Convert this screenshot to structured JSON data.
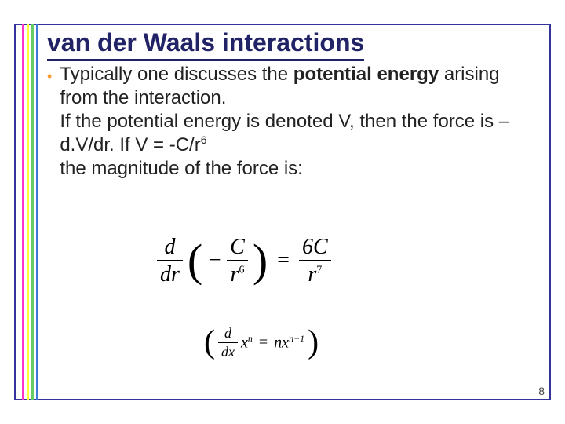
{
  "title": "van der Waals interactions",
  "bullet_glyph": "•",
  "body": {
    "line1a": "Typically one discusses the ",
    "line1b": "potential energy",
    "line1c": " arising from the interaction.",
    "line2": "If the potential energy is denoted V, then the force is –d.V/dr. If V = -C/r",
    "line2_sup": "6",
    "line3": "the magnitude of the force is:"
  },
  "eq_main": {
    "d": "d",
    "dr": "dr",
    "minus": "−",
    "C": "C",
    "r": "r",
    "six": "6",
    "eq": "=",
    "sixC": "6C",
    "seven": "7"
  },
  "eq_small": {
    "d": "d",
    "dx": "dx",
    "x": "x",
    "n": "n",
    "eq": "=",
    "nx": "nx",
    "nm1": "n−1"
  },
  "page_number": "8",
  "colors": {
    "frame": "#333399",
    "title": "#222266",
    "bullet": "#ff9933",
    "bar_magenta": "#ff33cc",
    "bar_yellow": "#ffff33",
    "bar_green": "#66cc66",
    "bar_blue": "#4477dd"
  }
}
